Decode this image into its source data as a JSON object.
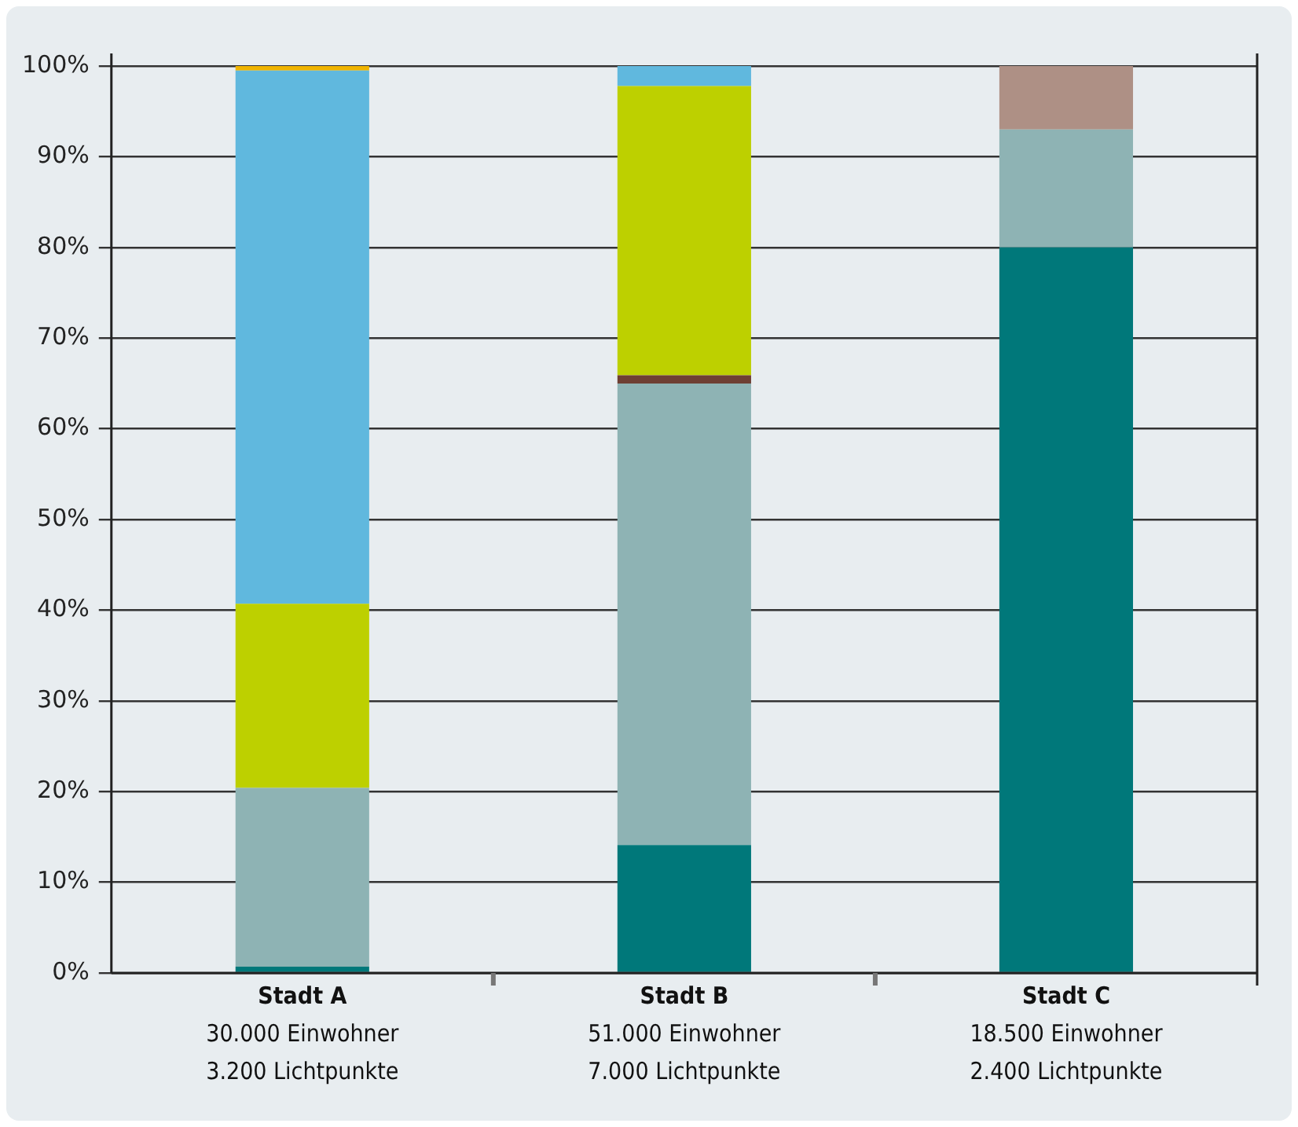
{
  "chart_data": {
    "type": "bar",
    "stacked": true,
    "grid": "y",
    "legend": false,
    "categories": [
      "Stadt A\n30.000 Einwohner\n3.200 Lichtpunkte",
      "Stadt B\n51.000 Einwohner\n7.000 Lichtpunkte",
      "Stadt C\n18.500 Einwohner\n2.400 Lichtpunkte"
    ],
    "series": [
      {
        "color": "#00787a",
        "values": [
          0.7,
          14.1,
          80
        ]
      },
      {
        "color": "#8eb3b4",
        "values": [
          19.7,
          50.9,
          13
        ]
      },
      {
        "color": "#6e3f33",
        "values": [
          null,
          0.9,
          null
        ]
      },
      {
        "color": "#bdd000",
        "values": [
          20.3,
          31.9,
          null
        ]
      },
      {
        "color": "#60b8de",
        "values": [
          58.8,
          2.2,
          null
        ]
      },
      {
        "color": "#f0b400",
        "values": [
          0.5,
          null,
          null
        ]
      },
      {
        "color": "#ae9085",
        "values": [
          null,
          null,
          7
        ]
      }
    ],
    "ylim": [
      0,
      100
    ],
    "yticks": [
      {
        "value": 0,
        "label": "0%"
      },
      {
        "value": 10,
        "label": "10%"
      },
      {
        "value": 20,
        "label": "20%"
      },
      {
        "value": 30,
        "label": "30%"
      },
      {
        "value": 40,
        "label": "40%"
      },
      {
        "value": 50,
        "label": "50%"
      },
      {
        "value": 60,
        "label": "60%"
      },
      {
        "value": 70,
        "label": "70%"
      },
      {
        "value": 80,
        "label": "80%"
      },
      {
        "value": 90,
        "label": "90%"
      },
      {
        "value": 100,
        "label": "100%"
      }
    ]
  }
}
